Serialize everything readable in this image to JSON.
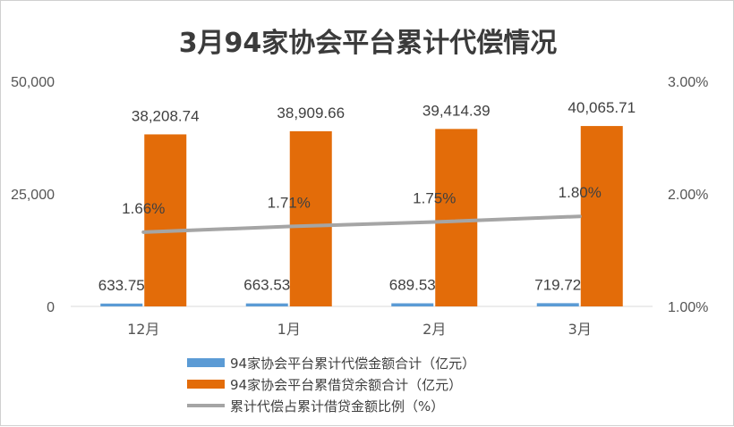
{
  "chart_data": {
    "type": "bar",
    "title": "3月94家协会平台累计代偿情况",
    "categories": [
      "12月",
      "1月",
      "2月",
      "3月"
    ],
    "y_left": {
      "min": 0,
      "max": 50000,
      "ticks": [
        "0",
        "25,000",
        "50,000"
      ]
    },
    "y_right": {
      "min": 0.01,
      "max": 0.03,
      "ticks": [
        "1.00%",
        "2.00%",
        "3.00%"
      ]
    },
    "series": [
      {
        "name": "94家协会平台累计代偿金额合计（亿元）",
        "kind": "bar",
        "axis": "left",
        "color": "#5b9bd5",
        "values": [
          633.75,
          663.53,
          689.53,
          719.72
        ],
        "labels": [
          "633.75",
          "663.53",
          "689.53",
          "719.72"
        ]
      },
      {
        "name": "94家协会平台累借贷余额合计（亿元）",
        "kind": "bar",
        "axis": "left",
        "color": "#e36c09",
        "values": [
          38208.74,
          38909.66,
          39414.39,
          40065.71
        ],
        "labels": [
          "38,208.74",
          "38,909.66",
          "39,414.39",
          "40,065.71"
        ]
      },
      {
        "name": "累计代偿占累计借贷金额比例（%）",
        "kind": "line",
        "axis": "right",
        "color": "#a5a5a5",
        "values": [
          0.0166,
          0.0171,
          0.0175,
          0.018
        ],
        "labels": [
          "1.66%",
          "1.71%",
          "1.75%",
          "1.80%"
        ]
      }
    ],
    "legend": "bottom",
    "grid": false
  }
}
